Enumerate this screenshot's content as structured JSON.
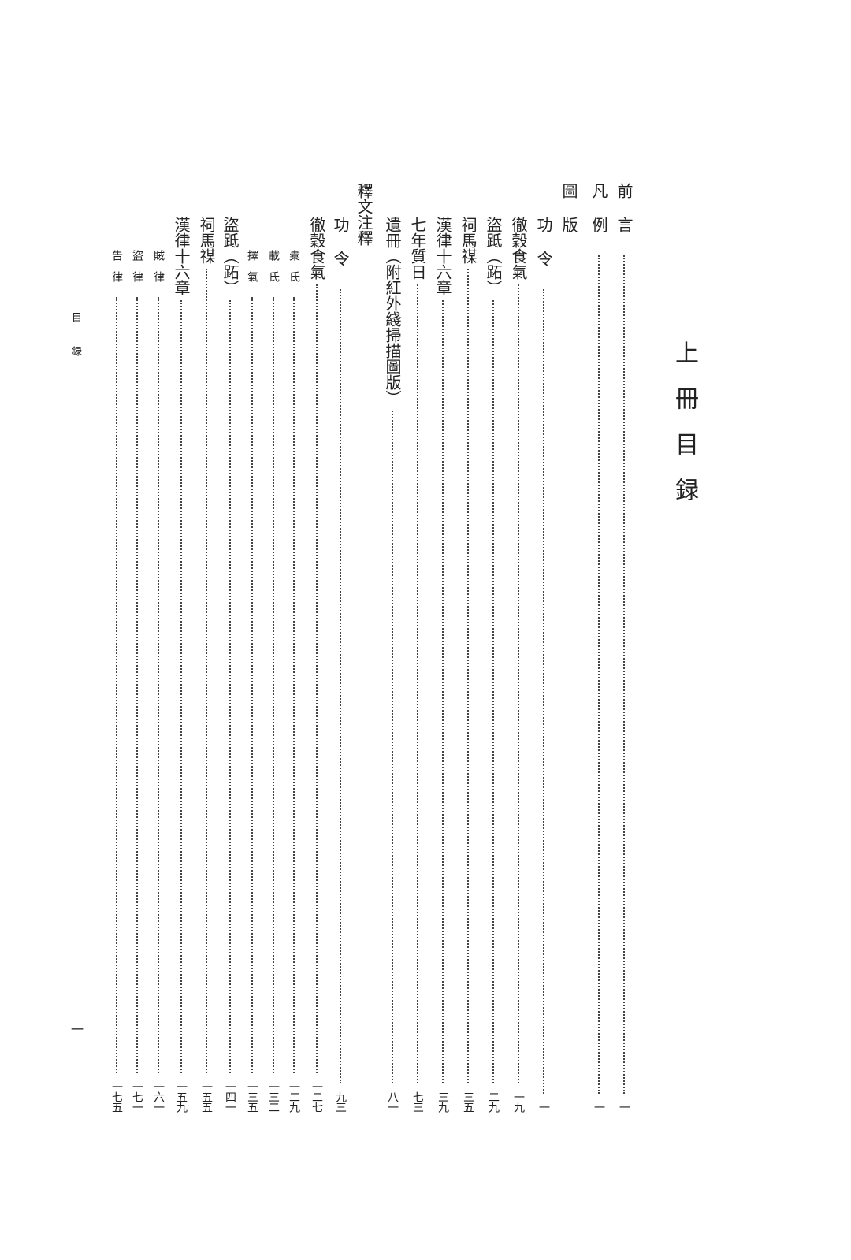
{
  "title": "上冊目録",
  "running_head": "目録",
  "page_number": "一",
  "entries": [
    {
      "label": "前言",
      "page": "一"
    },
    {
      "label": "凡例",
      "page": "一"
    },
    {
      "label": "圖版"
    },
    {
      "label": "功令",
      "page": "一"
    },
    {
      "label": "徹穀食氣",
      "page": "一九"
    },
    {
      "label": "盜䟡（跖）",
      "page": "二九"
    },
    {
      "label": "祠馬禖",
      "page": "三五"
    },
    {
      "label": "漢律十六章",
      "page": "三九"
    },
    {
      "label": "七年質日",
      "page": "七三"
    },
    {
      "label": "遺冊（附紅外綫掃描圖版）",
      "page": "八一"
    },
    {
      "label": "釋文注釋"
    },
    {
      "label": "功令",
      "page": "九三"
    },
    {
      "label": "徹穀食氣",
      "page": "一二七"
    },
    {
      "label": "橐氏",
      "page": "一二九"
    },
    {
      "label": "載氏",
      "page": "一三二"
    },
    {
      "label": "擇氣",
      "page": "一三五"
    },
    {
      "label": "盜䟡（跖）",
      "page": "一四一"
    },
    {
      "label": "祠馬禖",
      "page": "一五五"
    },
    {
      "label": "漢律十六章",
      "page": "一五九"
    },
    {
      "label": "賊律",
      "page": "一六一"
    },
    {
      "label": "盜律",
      "page": "一七一"
    },
    {
      "label": "告律",
      "page": "一七五"
    }
  ]
}
